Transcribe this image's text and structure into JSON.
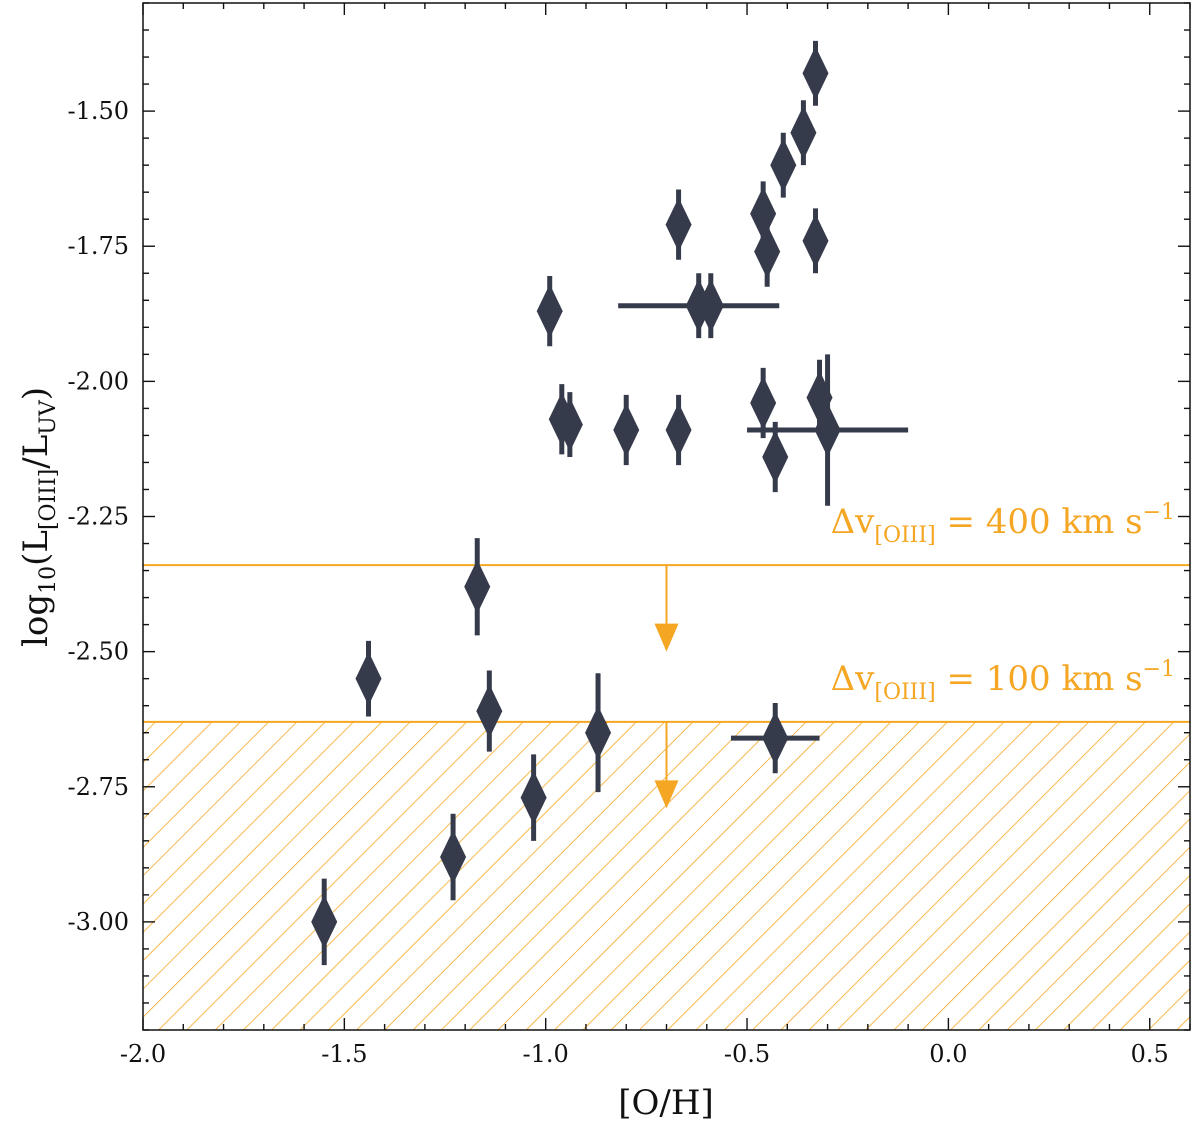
{
  "chart_data": {
    "type": "scatter",
    "xlabel": "[O/H]",
    "ylabel_parts": {
      "main": "log",
      "sub10": "10",
      "open": "(L",
      "sub_oiii": "[OIII]",
      "slash": "/L",
      "sub_uv": "UV",
      "close": ")"
    },
    "xlim": [
      -2.0,
      0.6
    ],
    "ylim": [
      -3.2,
      -1.3
    ],
    "x_ticks": [
      -2.0,
      -1.5,
      -1.0,
      -0.5,
      0.0,
      0.5
    ],
    "x_tick_labels": [
      "-2.0",
      "-1.5",
      "-1.0",
      "-0.5",
      "0.0",
      "0.5"
    ],
    "y_ticks": [
      -3.0,
      -2.75,
      -2.5,
      -2.25,
      -2.0,
      -1.75,
      -1.5
    ],
    "y_tick_labels": [
      "-3.00",
      "-2.75",
      "-2.50",
      "-2.25",
      "-2.00",
      "-1.75",
      "-1.50"
    ],
    "marker_color": "#363b4c",
    "limit_color": "#f5a623",
    "points": [
      {
        "x": -0.33,
        "y": -1.43,
        "yerr": 0.06
      },
      {
        "x": -0.36,
        "y": -1.54,
        "yerr": 0.06
      },
      {
        "x": -0.41,
        "y": -1.6,
        "yerr": 0.06
      },
      {
        "x": -0.46,
        "y": -1.69,
        "yerr": 0.06
      },
      {
        "x": -0.67,
        "y": -1.71,
        "yerr": 0.065
      },
      {
        "x": -0.33,
        "y": -1.74,
        "yerr": 0.06
      },
      {
        "x": -0.45,
        "y": -1.76,
        "yerr": 0.065
      },
      {
        "x": -0.99,
        "y": -1.87,
        "yerr": 0.065
      },
      {
        "x": -0.62,
        "y": -1.86,
        "yerr": 0.06,
        "xerr": 0.2
      },
      {
        "x": -0.59,
        "y": -1.86,
        "yerr": 0.06
      },
      {
        "x": -0.46,
        "y": -2.04,
        "yerr": 0.065
      },
      {
        "x": -0.32,
        "y": -2.03,
        "yerr": 0.07
      },
      {
        "x": -0.96,
        "y": -2.07,
        "yerr": 0.065
      },
      {
        "x": -0.94,
        "y": -2.08,
        "yerr": 0.06
      },
      {
        "x": -0.8,
        "y": -2.09,
        "yerr": 0.065
      },
      {
        "x": -0.67,
        "y": -2.09,
        "yerr": 0.065
      },
      {
        "x": -0.3,
        "y": -2.09,
        "yerr": 0.14,
        "xerr": 0.2
      },
      {
        "x": -0.43,
        "y": -2.14,
        "yerr": 0.065
      },
      {
        "x": -1.17,
        "y": -2.38,
        "yerr": 0.09
      },
      {
        "x": -1.44,
        "y": -2.55,
        "yerr": 0.07
      },
      {
        "x": -1.14,
        "y": -2.61,
        "yerr": 0.075
      },
      {
        "x": -0.87,
        "y": -2.65,
        "yerr": 0.11
      },
      {
        "x": -0.43,
        "y": -2.66,
        "yerr": 0.065,
        "xerr": 0.11
      },
      {
        "x": -1.03,
        "y": -2.77,
        "yerr": 0.08
      },
      {
        "x": -1.23,
        "y": -2.88,
        "yerr": 0.08
      },
      {
        "x": -1.55,
        "y": -3.0,
        "yerr": 0.08
      }
    ],
    "limits": [
      {
        "y": -2.34,
        "arrow_x": -0.7,
        "arrow_to": -2.5,
        "label_main": "Δv",
        "label_sub": "[OIII]",
        "label_value": " = 400 km s",
        "label_sup": "−1",
        "hatched": false
      },
      {
        "y": -2.63,
        "arrow_x": -0.7,
        "arrow_to": -2.79,
        "label_main": "Δv",
        "label_sub": "[OIII]",
        "label_value": " = 100 km s",
        "label_sup": "−1",
        "hatched": true
      }
    ]
  }
}
